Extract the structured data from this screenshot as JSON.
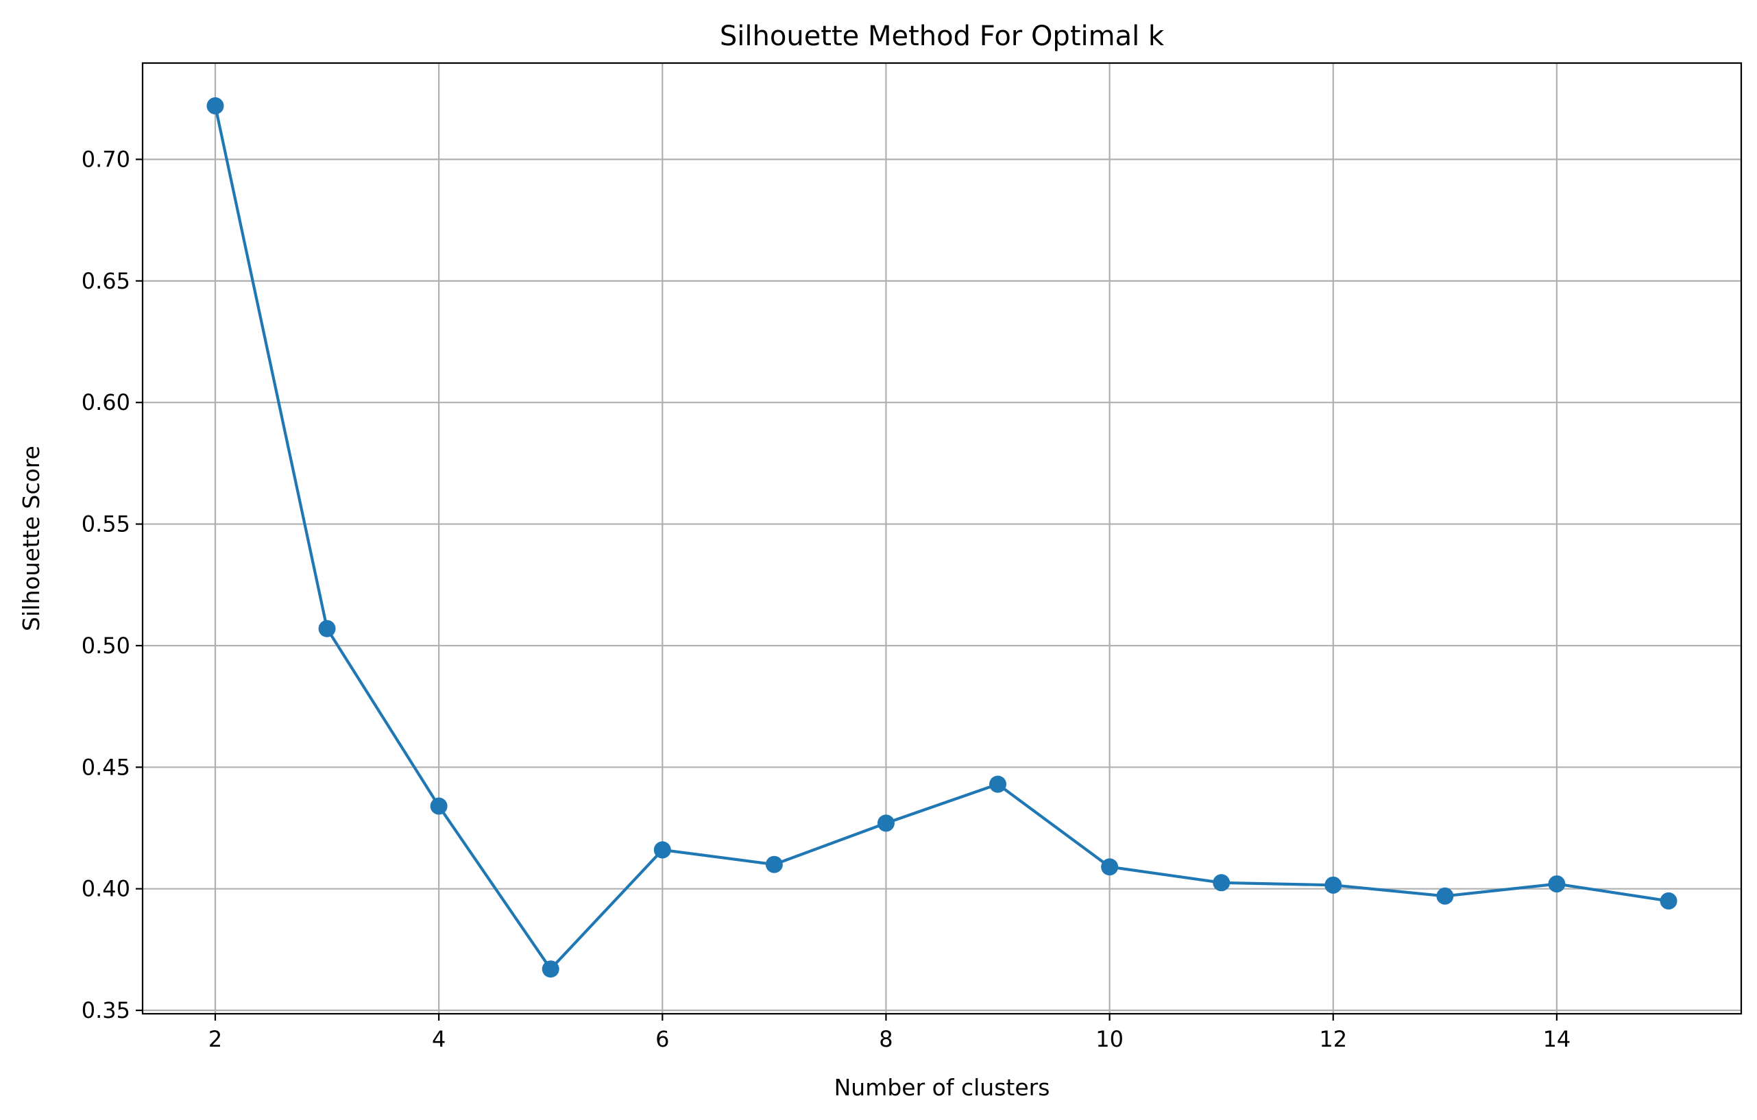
{
  "chart_data": {
    "type": "line",
    "title": "Silhouette Method For Optimal k",
    "xlabel": "Number of clusters",
    "ylabel": "Silhouette Score",
    "x": [
      2,
      3,
      4,
      5,
      6,
      7,
      8,
      9,
      10,
      11,
      12,
      13,
      14,
      15
    ],
    "series": [
      {
        "values": [
          0.722,
          0.507,
          0.434,
          0.367,
          0.416,
          0.41,
          0.427,
          0.443,
          0.409,
          0.4025,
          0.4015,
          0.397,
          0.402,
          0.395
        ],
        "color": "#1f77b4",
        "marker": "circle"
      }
    ],
    "xlim": [
      1.35,
      15.65
    ],
    "ylim": [
      0.3486,
      0.7396
    ],
    "xticks": [
      2,
      4,
      6,
      8,
      10,
      12,
      14
    ],
    "xtick_labels": [
      "2",
      "4",
      "6",
      "8",
      "10",
      "12",
      "14"
    ],
    "yticks": [
      0.35,
      0.4,
      0.45,
      0.5,
      0.55,
      0.6,
      0.65,
      0.7
    ],
    "ytick_labels": [
      "0.35",
      "0.40",
      "0.45",
      "0.50",
      "0.55",
      "0.60",
      "0.65",
      "0.70"
    ],
    "grid": true,
    "legend": "none"
  }
}
